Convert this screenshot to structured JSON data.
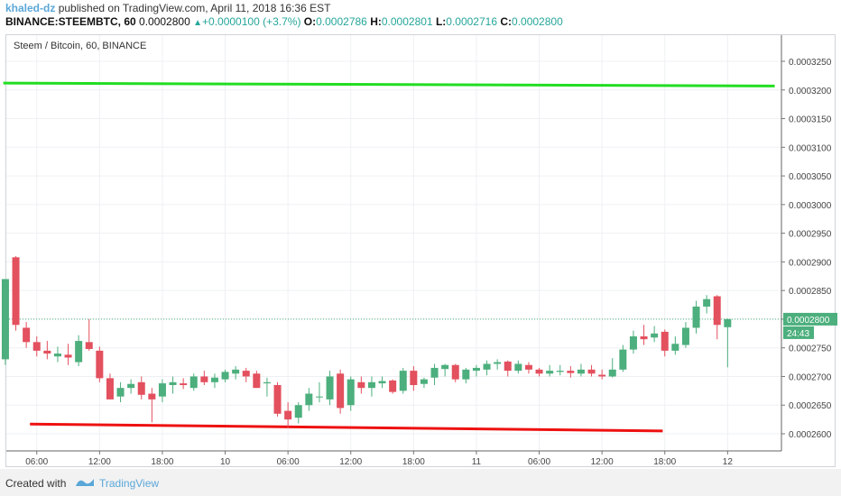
{
  "header": {
    "author": "khaled-dz",
    "published": "published on TradingView.com, April 11, 2018 16:36 EST",
    "symbol": "BINANCE:STEEMBTC, 60",
    "last": "0.0002800",
    "change": "+0.0000100 (+3.7%)",
    "o_label": "O:",
    "o": "0.0002786",
    "h_label": "H:",
    "h": "0.0002801",
    "l_label": "L:",
    "l": "0.0002716",
    "c_label": "C:",
    "c": "0.0002800"
  },
  "footer": {
    "created_with": "Created with",
    "brand": "TradingView"
  },
  "colors": {
    "up": "#4caf7d",
    "down": "#e3505e",
    "support": "#ee1111",
    "resistance": "#22dd22",
    "price_tag": "#4caf7d"
  },
  "chart_data": {
    "type": "candlestick",
    "title": "Steem / Bitcoin, 60, BINANCE",
    "ylim": [
      0.0002575,
      0.0003285
    ],
    "yticks": [
      "0.0003250",
      "0.0003200",
      "0.0003150",
      "0.0003100",
      "0.0003050",
      "0.0003000",
      "0.0002950",
      "0.0002900",
      "0.0002850",
      "0.0002800",
      "0.0002750",
      "0.0002700",
      "0.0002650",
      "0.0002600"
    ],
    "xticks": [
      {
        "label": "06:00",
        "i": 3
      },
      {
        "label": "12:00",
        "i": 9
      },
      {
        "label": "18:00",
        "i": 15
      },
      {
        "label": "10",
        "i": 21
      },
      {
        "label": "06:00",
        "i": 27
      },
      {
        "label": "12:00",
        "i": 33
      },
      {
        "label": "18:00",
        "i": 39
      },
      {
        "label": "11",
        "i": 45
      },
      {
        "label": "06:00",
        "i": 51
      },
      {
        "label": "12:00",
        "i": 57
      },
      {
        "label": "18:00",
        "i": 63
      },
      {
        "label": "12",
        "i": 69
      }
    ],
    "x_start": 0.35,
    "candles": [
      [
        0.000273,
        0.000287,
        0.000272,
        0.000287
      ],
      [
        0.0002908,
        0.000291,
        0.000278,
        0.000279
      ],
      [
        0.0002785,
        0.0002795,
        0.000275,
        0.000276
      ],
      [
        0.000276,
        0.000277,
        0.0002735,
        0.0002745
      ],
      [
        0.0002745,
        0.0002762,
        0.000273,
        0.000274
      ],
      [
        0.0002735,
        0.0002752,
        0.0002725,
        0.000274
      ],
      [
        0.0002738,
        0.0002757,
        0.000272,
        0.0002733
      ],
      [
        0.0002725,
        0.0002772,
        0.0002718,
        0.0002762
      ],
      [
        0.000276,
        0.00028,
        0.0002745,
        0.0002748
      ],
      [
        0.0002745,
        0.0002752,
        0.000269,
        0.0002697
      ],
      [
        0.0002697,
        0.0002705,
        0.000266,
        0.000266
      ],
      [
        0.0002665,
        0.000269,
        0.0002655,
        0.000268
      ],
      [
        0.000268,
        0.0002695,
        0.000267,
        0.0002687
      ],
      [
        0.000269,
        0.00027,
        0.000266,
        0.0002668
      ],
      [
        0.000267,
        0.000268,
        0.000262,
        0.000266
      ],
      [
        0.0002665,
        0.0002695,
        0.0002655,
        0.0002688
      ],
      [
        0.0002685,
        0.00027,
        0.000267,
        0.000269
      ],
      [
        0.0002688,
        0.0002697,
        0.0002678,
        0.0002685
      ],
      [
        0.000268,
        0.0002705,
        0.0002675,
        0.00027
      ],
      [
        0.00027,
        0.000271,
        0.0002685,
        0.000269
      ],
      [
        0.000269,
        0.0002705,
        0.000268,
        0.0002698
      ],
      [
        0.0002695,
        0.0002712,
        0.000269,
        0.0002708
      ],
      [
        0.0002705,
        0.0002718,
        0.0002695,
        0.0002712
      ],
      [
        0.000271,
        0.0002715,
        0.000269,
        0.00027
      ],
      [
        0.0002705,
        0.000271,
        0.000268,
        0.000268
      ],
      [
        0.0002688,
        0.0002698,
        0.0002665,
        0.000269
      ],
      [
        0.0002685,
        0.000269,
        0.000263,
        0.0002635
      ],
      [
        0.000264,
        0.0002655,
        0.000261,
        0.0002625
      ],
      [
        0.0002628,
        0.0002655,
        0.0002618,
        0.000265
      ],
      [
        0.000265,
        0.000268,
        0.000264,
        0.000267
      ],
      [
        0.0002665,
        0.000269,
        0.0002655,
        0.0002665
      ],
      [
        0.000266,
        0.000271,
        0.000265,
        0.00027
      ],
      [
        0.0002705,
        0.0002712,
        0.0002635,
        0.0002645
      ],
      [
        0.000265,
        0.00027,
        0.000264,
        0.0002695
      ],
      [
        0.000269,
        0.00027,
        0.000267,
        0.000268
      ],
      [
        0.000268,
        0.00027,
        0.0002665,
        0.000269
      ],
      [
        0.0002688,
        0.00027,
        0.000268,
        0.0002692
      ],
      [
        0.0002693,
        0.0002695,
        0.000267,
        0.0002673
      ],
      [
        0.0002675,
        0.0002715,
        0.000267,
        0.000271
      ],
      [
        0.000271,
        0.0002718,
        0.0002675,
        0.0002685
      ],
      [
        0.0002687,
        0.0002698,
        0.000268,
        0.0002695
      ],
      [
        0.0002698,
        0.0002722,
        0.0002685,
        0.0002715
      ],
      [
        0.0002713,
        0.0002722,
        0.00027,
        0.000272
      ],
      [
        0.000272,
        0.0002722,
        0.000269,
        0.0002695
      ],
      [
        0.0002695,
        0.0002715,
        0.0002688,
        0.0002712
      ],
      [
        0.000271,
        0.000272,
        0.00027,
        0.0002715
      ],
      [
        0.0002712,
        0.0002728,
        0.0002702,
        0.0002722
      ],
      [
        0.0002722,
        0.000273,
        0.0002712,
        0.0002725
      ],
      [
        0.0002726,
        0.0002728,
        0.00027,
        0.000271
      ],
      [
        0.000271,
        0.0002728,
        0.0002705,
        0.0002722
      ],
      [
        0.000272,
        0.0002725,
        0.0002705,
        0.0002712
      ],
      [
        0.0002712,
        0.0002715,
        0.00027,
        0.0002705
      ],
      [
        0.0002705,
        0.000272,
        0.00027,
        0.000271
      ],
      [
        0.0002708,
        0.000272,
        0.0002702,
        0.000271
      ],
      [
        0.000271,
        0.0002718,
        0.0002698,
        0.0002706
      ],
      [
        0.0002705,
        0.0002722,
        0.00027,
        0.0002712
      ],
      [
        0.0002712,
        0.000272,
        0.00027,
        0.0002705
      ],
      [
        0.0002703,
        0.0002712,
        0.0002695,
        0.00027
      ],
      [
        0.00027,
        0.0002732,
        0.0002698,
        0.0002712
      ],
      [
        0.0002712,
        0.0002755,
        0.0002708,
        0.0002747
      ],
      [
        0.0002747,
        0.000278,
        0.000274,
        0.000277
      ],
      [
        0.000277,
        0.000279,
        0.0002755,
        0.0002765
      ],
      [
        0.0002768,
        0.0002788,
        0.000276,
        0.0002775
      ],
      [
        0.0002778,
        0.0002782,
        0.0002735,
        0.0002745
      ],
      [
        0.0002745,
        0.000277,
        0.0002738,
        0.0002757
      ],
      [
        0.0002755,
        0.0002795,
        0.000275,
        0.0002785
      ],
      [
        0.0002785,
        0.0002832,
        0.0002775,
        0.0002822
      ],
      [
        0.0002822,
        0.0002842,
        0.000281,
        0.0002835
      ],
      [
        0.000284,
        0.0002842,
        0.0002765,
        0.000279
      ],
      [
        0.0002786,
        0.0002801,
        0.0002716,
        0.00028
      ]
    ],
    "support_line": {
      "from": {
        "i": 2.35,
        "y": 0.0002617
      },
      "to": {
        "i": 62.8,
        "y": 0.0002605
      }
    },
    "resistance_line": {
      "from": {
        "i": -0.2,
        "y": 0.0003212
      },
      "to": {
        "i": 73.5,
        "y": 0.0003207
      }
    },
    "last_price": {
      "value": 0.00028,
      "label": "0.0002800",
      "countdown": "24:43"
    }
  }
}
